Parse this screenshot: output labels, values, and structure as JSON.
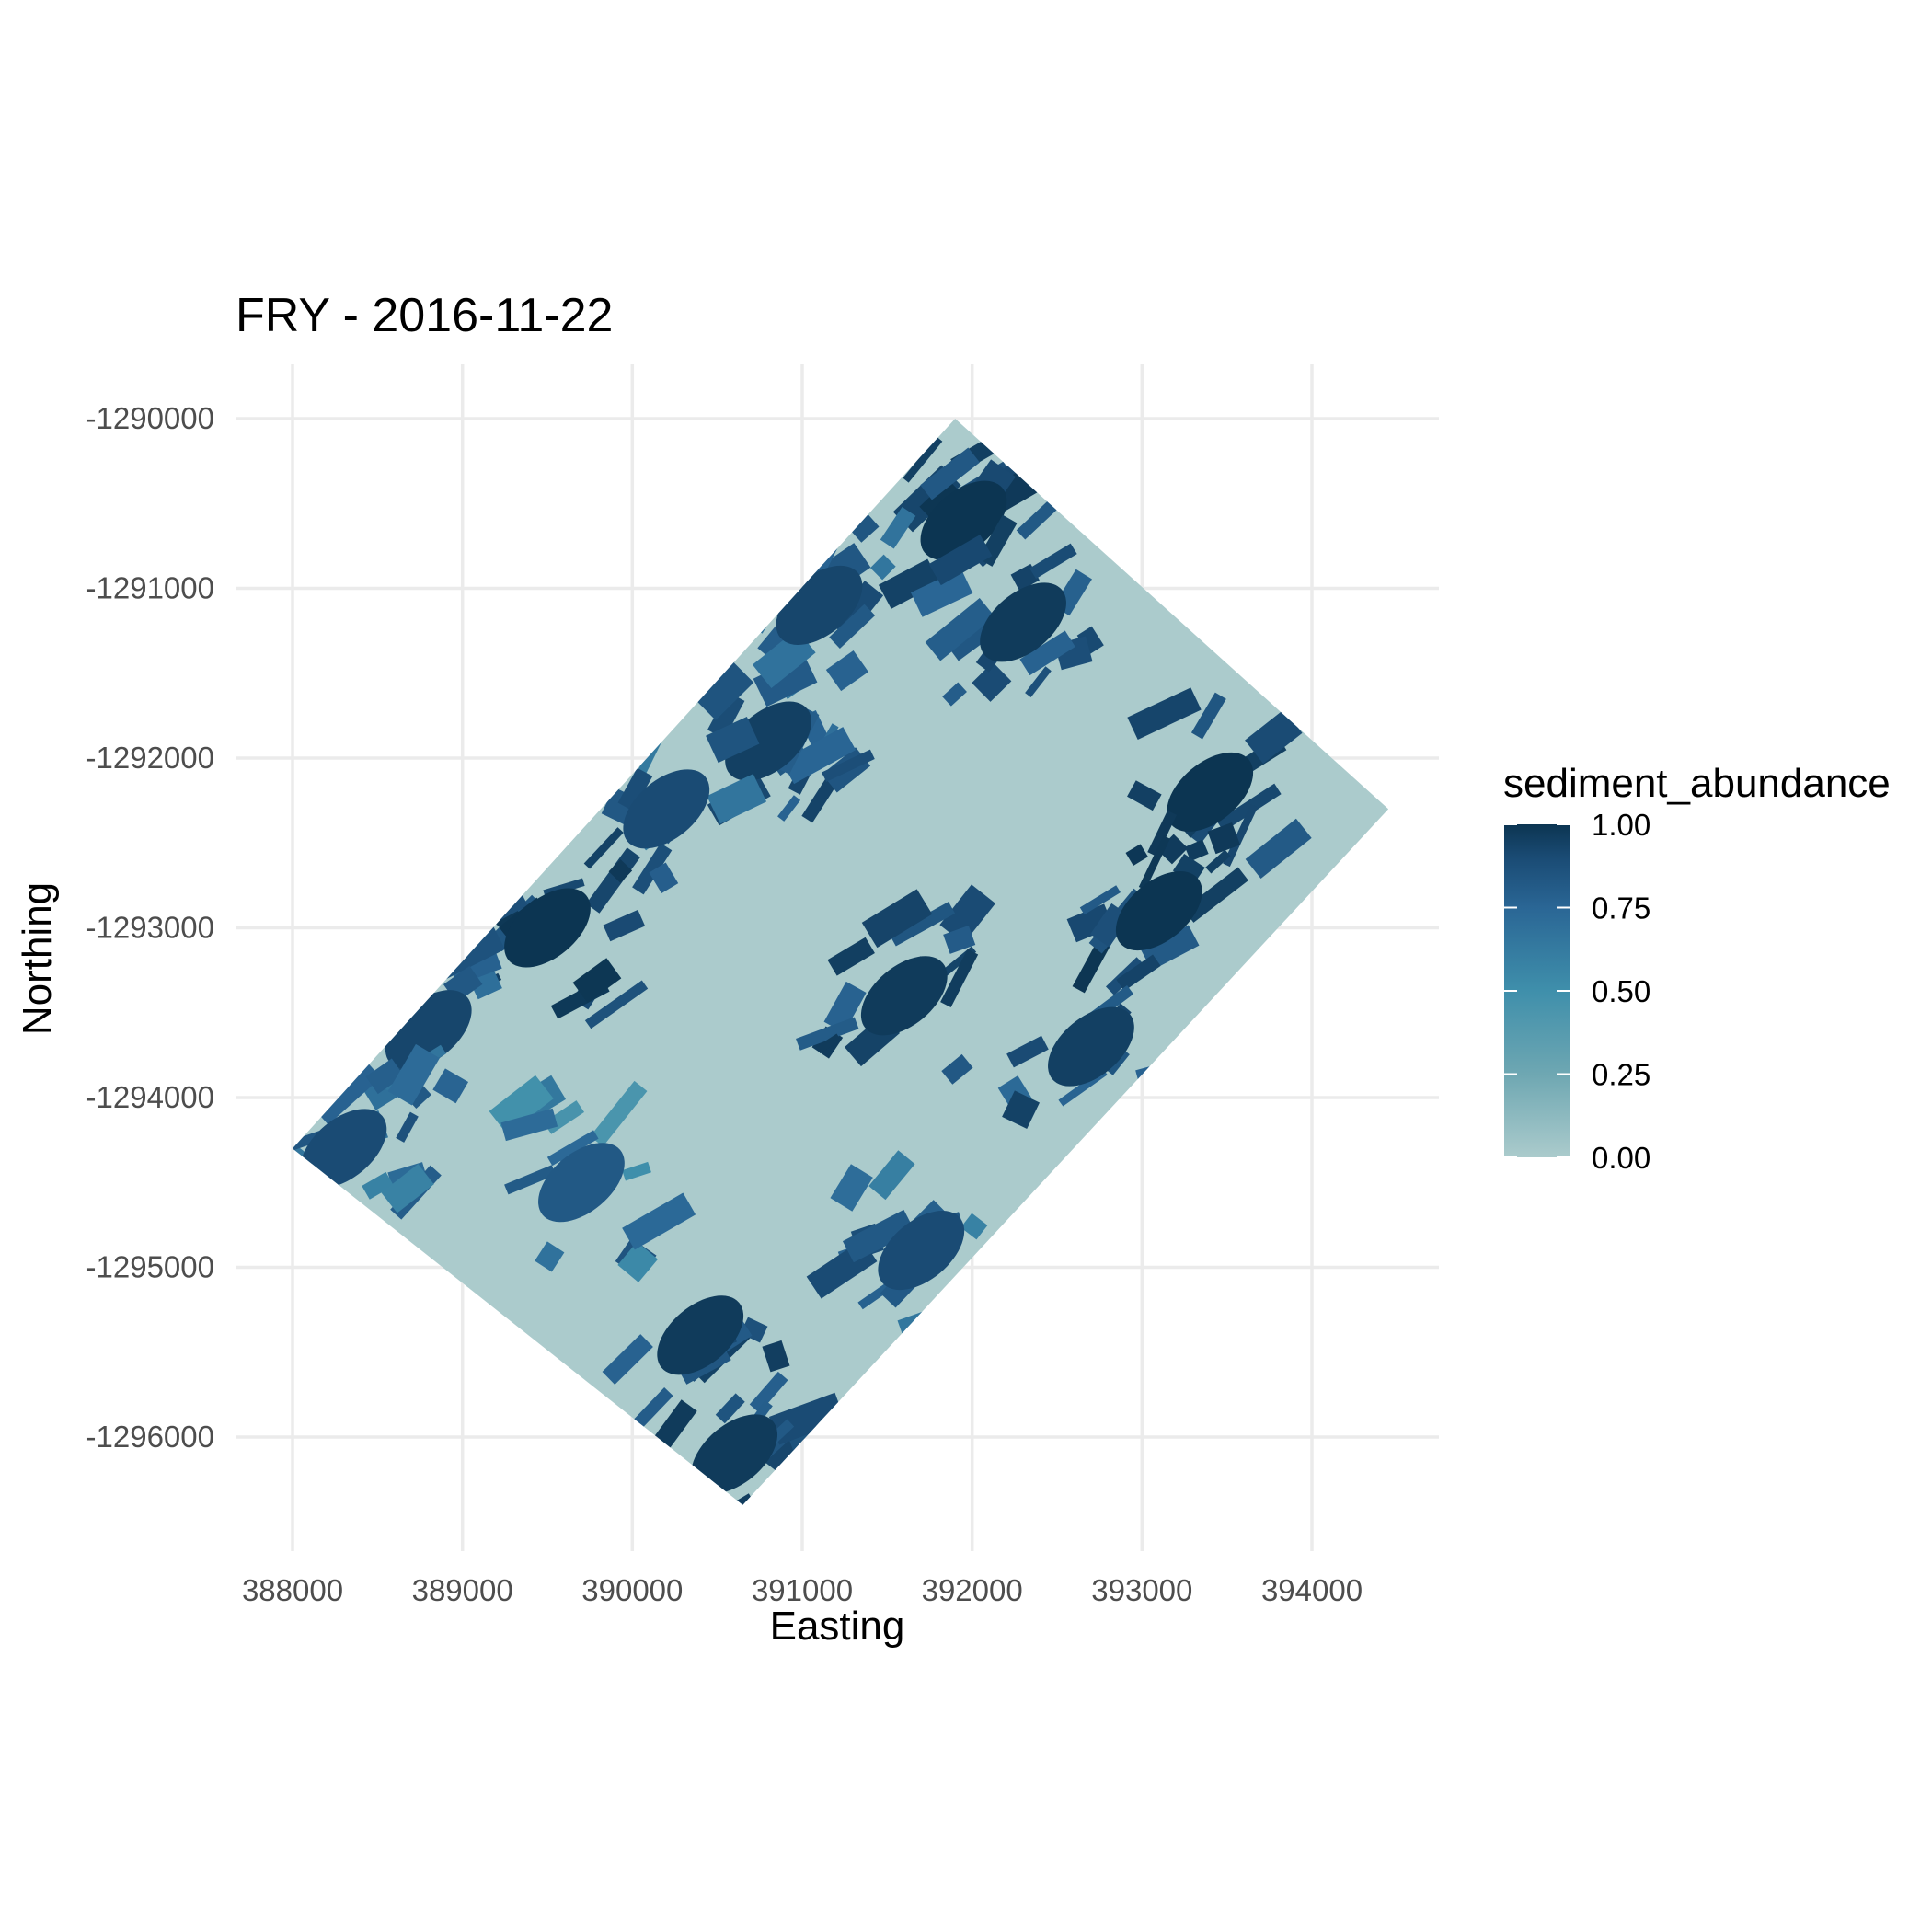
{
  "chart_data": {
    "type": "heatmap",
    "title": "FRY - 2016-11-22",
    "xlabel": "Easting",
    "ylabel": "Northing",
    "x_ticks": [
      388000,
      389000,
      390000,
      391000,
      392000,
      393000,
      394000
    ],
    "y_ticks": [
      -1290000,
      -1291000,
      -1292000,
      -1293000,
      -1294000,
      -1295000,
      -1296000
    ],
    "x_tick_labels": [
      "388000",
      "389000",
      "390000",
      "391000",
      "392000",
      "393000",
      "394000"
    ],
    "y_tick_labels": [
      "-1290000",
      "-1291000",
      "-1292000",
      "-1293000",
      "-1294000",
      "-1295000",
      "-1296000"
    ],
    "xlim": [
      387600,
      394800
    ],
    "ylim": [
      -1296700,
      -1289600
    ],
    "grid": true,
    "legend": {
      "title": "sediment_abundance",
      "placement": "right",
      "breaks": [
        1.0,
        0.75,
        0.5,
        0.25,
        0.0
      ],
      "labels": [
        "1.00",
        "0.75",
        "0.50",
        "0.25",
        "0.00"
      ]
    },
    "colorscale": [
      "#abcbcc",
      "#6ea7b2",
      "#3f8fab",
      "#2a6695",
      "#1a4b74",
      "#0c3552"
    ],
    "value_range": [
      0,
      1
    ],
    "data_extent": {
      "corners": [
        [
          391900,
          -1290000
        ],
        [
          394450,
          -1292300
        ],
        [
          390650,
          -1296400
        ],
        [
          388000,
          -1294300
        ]
      ],
      "description": "rotated rectangular raster footprint"
    },
    "high_value_regions": [
      {
        "x": 391950,
        "y": -1290600,
        "value": 1.0
      },
      {
        "x": 392300,
        "y": -1291200,
        "value": 0.95
      },
      {
        "x": 391100,
        "y": -1291100,
        "value": 0.85
      },
      {
        "x": 390800,
        "y": -1291900,
        "value": 0.9
      },
      {
        "x": 390200,
        "y": -1292300,
        "value": 0.8
      },
      {
        "x": 389500,
        "y": -1293000,
        "value": 1.0
      },
      {
        "x": 388800,
        "y": -1293600,
        "value": 0.85
      },
      {
        "x": 388300,
        "y": -1294300,
        "value": 0.8
      },
      {
        "x": 393400,
        "y": -1292200,
        "value": 1.0
      },
      {
        "x": 393100,
        "y": -1292900,
        "value": 1.0
      },
      {
        "x": 392700,
        "y": -1293700,
        "value": 0.9
      },
      {
        "x": 390400,
        "y": -1295400,
        "value": 0.95
      },
      {
        "x": 390600,
        "y": -1296100,
        "value": 0.95
      },
      {
        "x": 391700,
        "y": -1294900,
        "value": 0.8
      },
      {
        "x": 391600,
        "y": -1293400,
        "value": 0.95
      },
      {
        "x": 389700,
        "y": -1294500,
        "value": 0.7
      }
    ],
    "background_value": 0.0
  },
  "colors": {
    "background": "#ffffff",
    "grid": "#ebebeb",
    "low": "#abcbcc",
    "high": "#0c3552"
  }
}
